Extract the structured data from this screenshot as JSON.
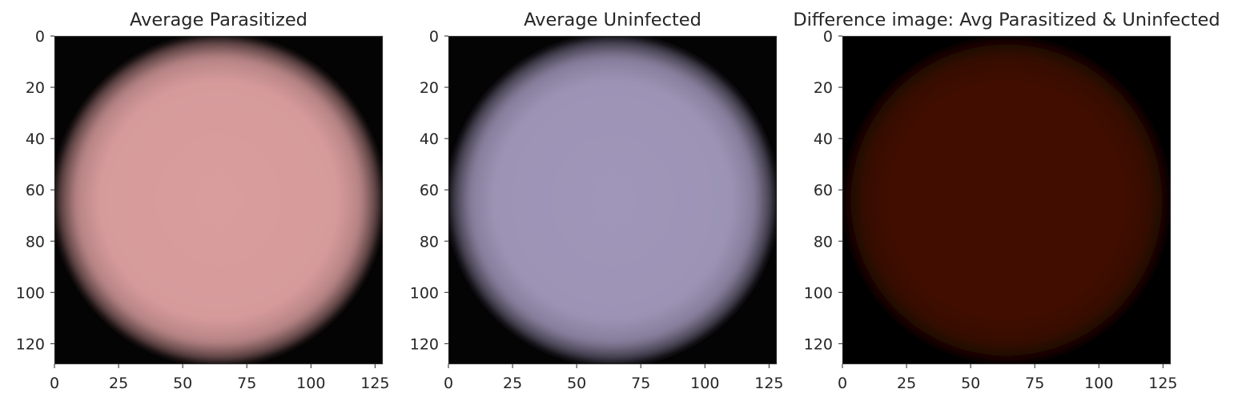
{
  "chart_data": [
    {
      "type": "heatmap",
      "title": "Average Parasitized",
      "xlim": [
        0,
        128
      ],
      "ylim": [
        128,
        0
      ],
      "xticks": [
        0,
        25,
        50,
        75,
        100,
        125
      ],
      "yticks": [
        0,
        20,
        40,
        60,
        80,
        100,
        120
      ],
      "xtick_labels": [
        "0",
        "25",
        "50",
        "75",
        "100",
        "125"
      ],
      "ytick_labels": [
        "0",
        "20",
        "40",
        "60",
        "80",
        "100",
        "120"
      ],
      "image": {
        "shape": "circle",
        "center": [
          64,
          64
        ],
        "radius": 62,
        "fill_color": "#d69a9b",
        "background_color": "#050404"
      },
      "grid": false
    },
    {
      "type": "heatmap",
      "title": "Average Uninfected",
      "xlim": [
        0,
        128
      ],
      "ylim": [
        128,
        0
      ],
      "xticks": [
        0,
        25,
        50,
        75,
        100,
        125
      ],
      "yticks": [
        0,
        20,
        40,
        60,
        80,
        100,
        120
      ],
      "xtick_labels": [
        "0",
        "25",
        "50",
        "75",
        "100",
        "125"
      ],
      "ytick_labels": [
        "0",
        "20",
        "40",
        "60",
        "80",
        "100",
        "120"
      ],
      "image": {
        "shape": "circle",
        "center": [
          64,
          64
        ],
        "radius": 62,
        "fill_color": "#9c93b5",
        "background_color": "#050405"
      },
      "grid": false
    },
    {
      "type": "heatmap",
      "title": "Difference image: Avg Parasitized & Uninfected",
      "xlim": [
        0,
        128
      ],
      "ylim": [
        128,
        0
      ],
      "xticks": [
        0,
        25,
        50,
        75,
        100,
        125
      ],
      "yticks": [
        0,
        20,
        40,
        60,
        80,
        100,
        120
      ],
      "xtick_labels": [
        "0",
        "25",
        "50",
        "75",
        "100",
        "125"
      ],
      "ytick_labels": [
        "0",
        "20",
        "40",
        "60",
        "80",
        "100",
        "120"
      ],
      "image": {
        "shape": "circle",
        "center": [
          64,
          64
        ],
        "radius": 62,
        "fill_color": "#3f0d04",
        "background_color": "#000000"
      },
      "grid": false
    }
  ]
}
